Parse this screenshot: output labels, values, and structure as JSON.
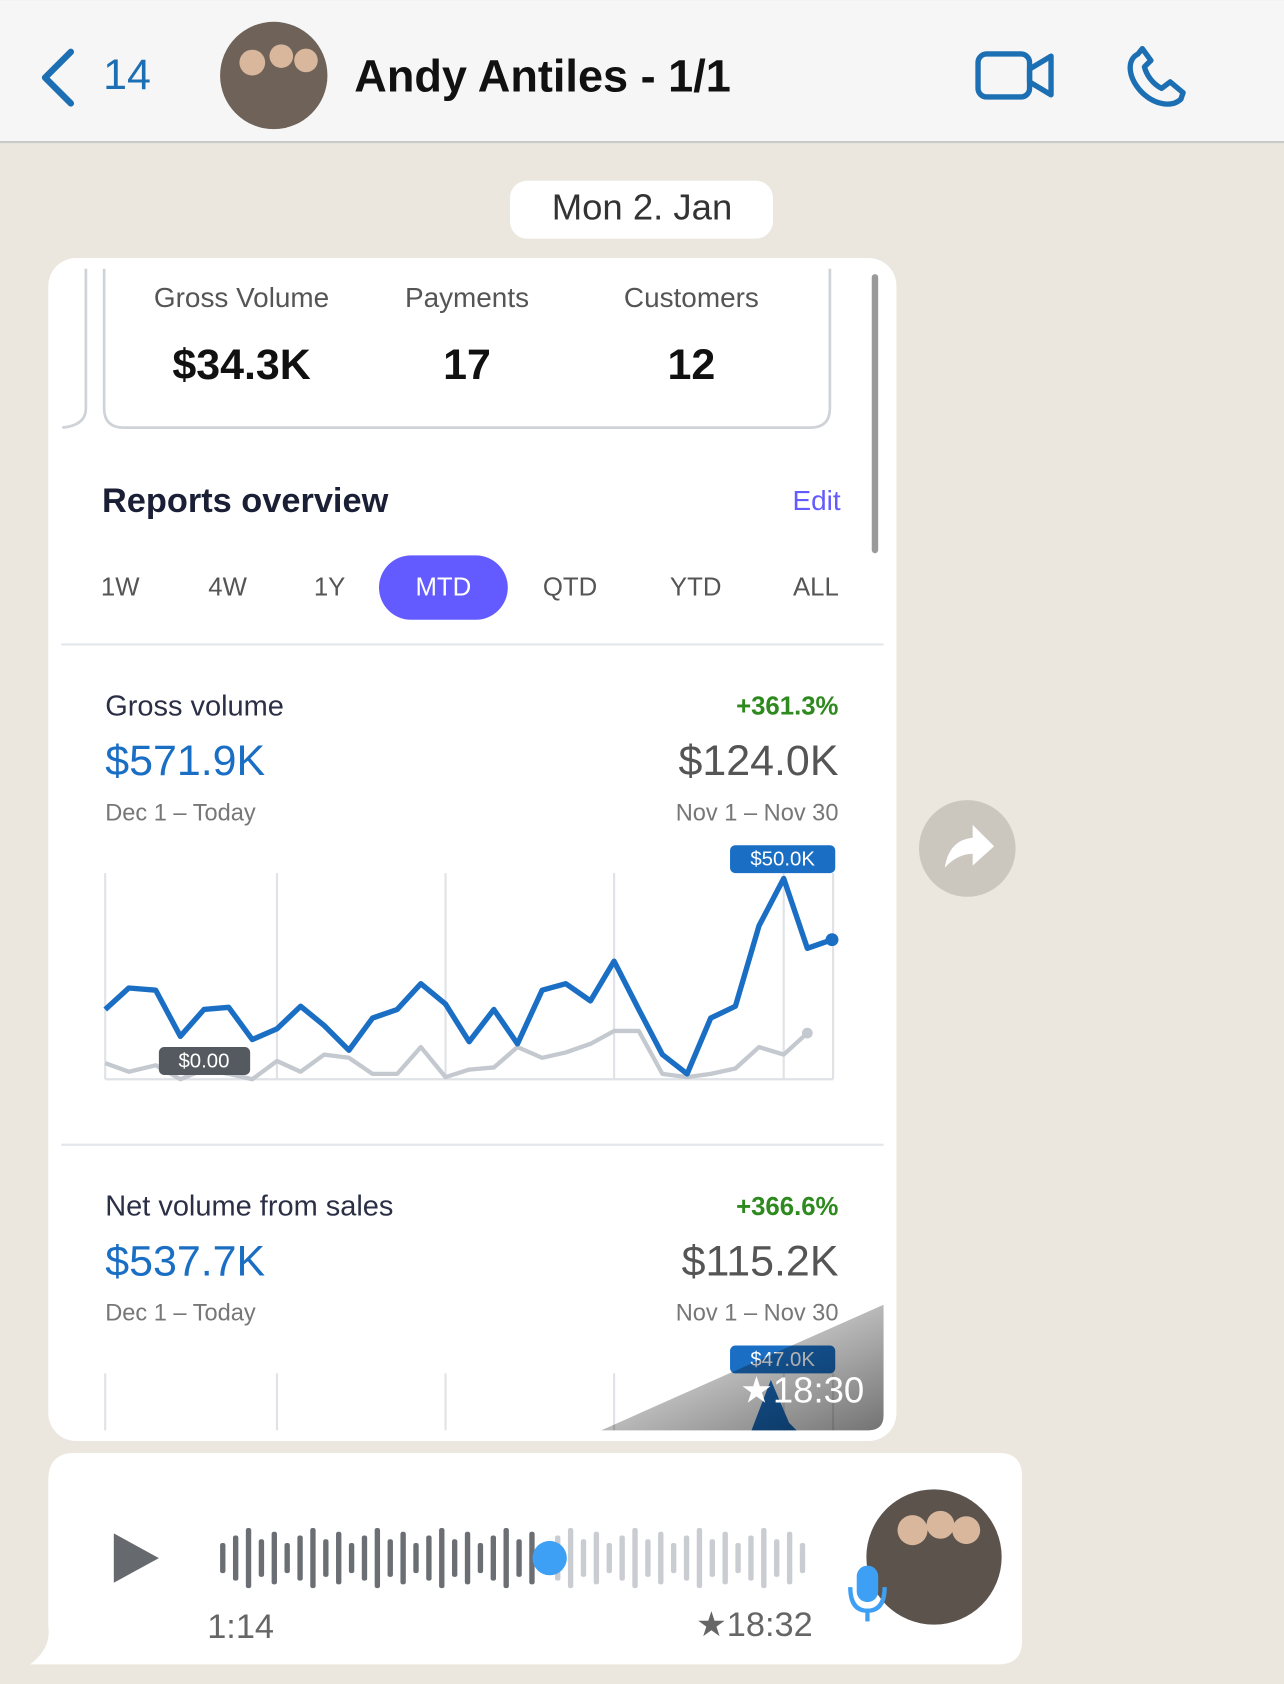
{
  "header": {
    "back_count": "14",
    "title": "Andy Antiles - 1/1"
  },
  "date": "Mon 2. Jan",
  "stats": [
    {
      "label": "Gross Volume",
      "value": "$34.3K"
    },
    {
      "label": "Payments",
      "value": "17"
    },
    {
      "label": "Customers",
      "value": "12"
    }
  ],
  "reports": {
    "title": "Reports overview",
    "edit": "Edit",
    "tabs": [
      "1W",
      "4W",
      "1Y",
      "MTD",
      "QTD",
      "YTD",
      "ALL"
    ]
  },
  "sections": [
    {
      "title": "Gross volume",
      "change": "+361.3%",
      "current": "$571.9K",
      "previous": "$124.0K",
      "current_range": "Dec 1 – Today",
      "previous_range": "Nov 1 – Nov 30",
      "peak_label": "$50.0K",
      "base_label": "$0.00"
    },
    {
      "title": "Net volume from sales",
      "change": "+366.6%",
      "current": "$537.7K",
      "previous": "$115.2K",
      "current_range": "Dec 1 – Today",
      "previous_range": "Nov 1 – Nov 30",
      "peak_label": "$47.0K"
    }
  ],
  "image_time": "★18:30",
  "voice": {
    "duration": "1:14",
    "time": "★18:32"
  }
}
